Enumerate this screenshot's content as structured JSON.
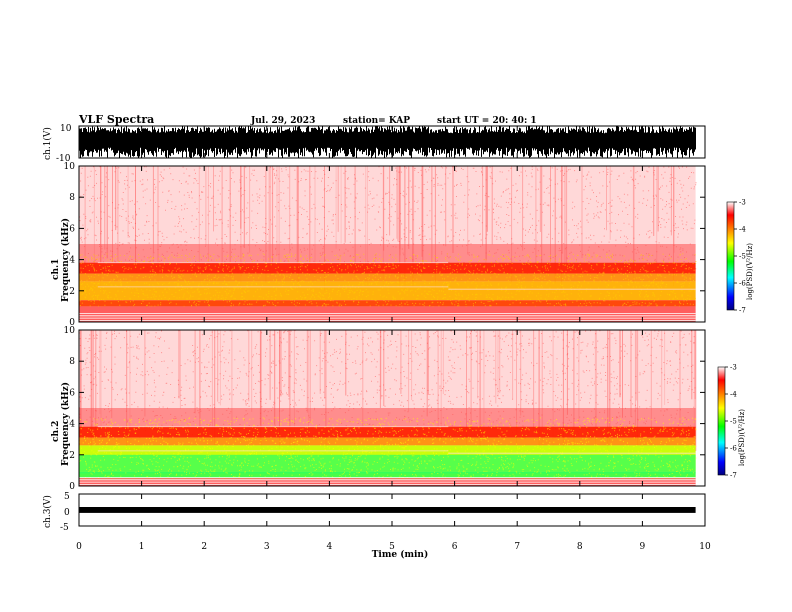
{
  "header": {
    "title": "VLF Spectra",
    "date": "Jul. 29, 2023",
    "station": "station= KAP",
    "start": "start  UT =   20: 40: 1"
  },
  "colors": {
    "spectrum_low": "#ff0000",
    "spectrum_mid": "#ffff00",
    "spectrum_high": "#00ff00",
    "waveform": "#000000"
  },
  "chart_data": [
    {
      "type": "line",
      "panel": "ch1-waveform",
      "ylabel": "ch.1(V)",
      "ylim": [
        -10,
        10
      ],
      "yticks": [
        "10",
        "-10"
      ],
      "xlim": [
        0,
        10
      ],
      "description_values": {
        "amplitude_range": [
          -10,
          10
        ]
      }
    },
    {
      "type": "heatmap",
      "panel": "ch1-spectrogram",
      "ylabel": "ch.1\nFrequency (kHz)",
      "ylabel_lines": [
        "ch.1",
        "Frequency (kHz)"
      ],
      "ylim": [
        0,
        10
      ],
      "yticks": [
        "0",
        "2",
        "4",
        "6",
        "8",
        "10"
      ],
      "xlim": [
        0,
        10
      ],
      "data_end_min": 9.85,
      "intense_band_khz": [
        1.0,
        3.8
      ],
      "colorbar": {
        "label": "log(PSD)(V²/Hz)",
        "range": [
          -7,
          -3
        ],
        "ticks": [
          "-3",
          "-4",
          "-5",
          "-6",
          "-7"
        ]
      }
    },
    {
      "type": "heatmap",
      "panel": "ch2-spectrogram",
      "ylabel_lines": [
        "ch.2",
        "Frequency (kHz)"
      ],
      "ylim": [
        0,
        10
      ],
      "yticks": [
        "0",
        "2",
        "4",
        "6",
        "8",
        "10"
      ],
      "xlim": [
        0,
        10
      ],
      "data_end_min": 9.85,
      "intense_band_khz": [
        0.5,
        3.8
      ],
      "colorbar": {
        "label": "log(PSD)(V²/Hz)",
        "range": [
          -7,
          -3
        ],
        "ticks": [
          "-3",
          "-4",
          "-5",
          "-6",
          "-7"
        ]
      }
    },
    {
      "type": "line",
      "panel": "ch3-waveform",
      "ylabel": "ch.3(V)",
      "ylim": [
        -5,
        5
      ],
      "yticks": [
        "5",
        "0",
        "-5"
      ],
      "xlim": [
        0,
        10
      ],
      "level_v": [
        -0.3,
        0.3
      ]
    }
  ],
  "xaxis": {
    "label": "Time (min)",
    "ticks": [
      "0",
      "1",
      "2",
      "3",
      "4",
      "5",
      "6",
      "7",
      "8",
      "9",
      "10"
    ]
  }
}
